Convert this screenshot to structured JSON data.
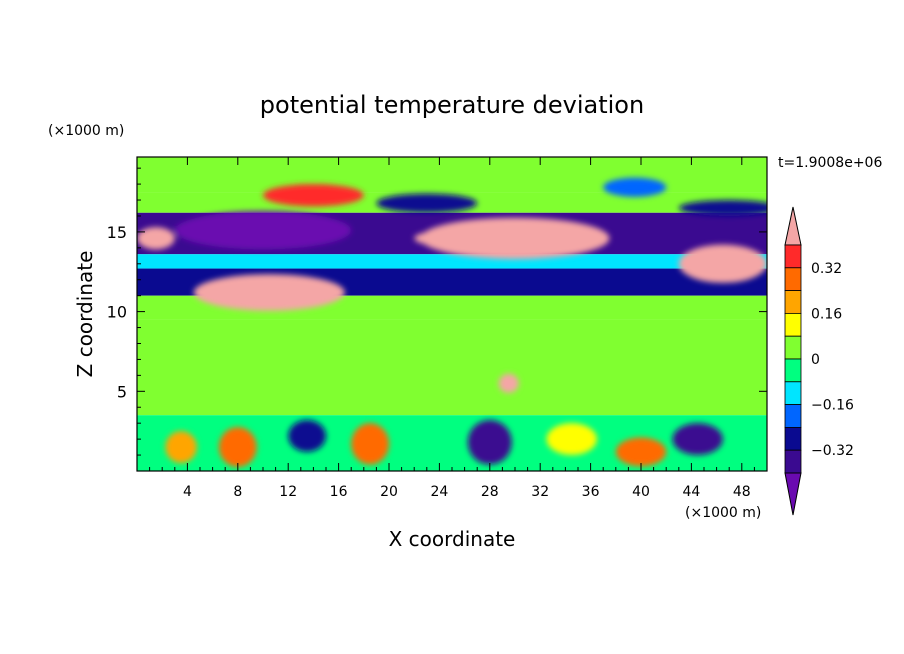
{
  "chart_data": {
    "type": "heatmap",
    "title": "potential temperature deviation",
    "xlabel": "X coordinate",
    "ylabel": "Z coordinate",
    "x_unit": "(×1000 m)",
    "y_unit": "(×1000 m)",
    "time_label": "t=1.9008e+06",
    "xlim": [
      0,
      50
    ],
    "ylim": [
      0,
      19.7
    ],
    "x_ticks": [
      4,
      8,
      12,
      16,
      20,
      24,
      28,
      32,
      36,
      40,
      44,
      48
    ],
    "y_ticks": [
      5,
      10,
      15
    ],
    "colorbar": {
      "levels": [
        -0.4,
        -0.32,
        -0.24,
        -0.16,
        -0.08,
        0,
        0.08,
        0.16,
        0.24,
        0.32,
        0.4
      ],
      "tick_labels": [
        "0.32",
        "0.16",
        "0",
        "−0.16",
        "−0.32"
      ],
      "tick_values": [
        0.32,
        0.16,
        0,
        -0.16,
        -0.32
      ],
      "colors_top_to_bottom": [
        "#f4a6a6",
        "#ff2a2a",
        "#ff6a00",
        "#ffa500",
        "#ffff00",
        "#80ff30",
        "#00ff80",
        "#00e5ff",
        "#0066ff",
        "#0a0a90",
        "#3a0a90",
        "#6a0ab0"
      ],
      "extend": "both"
    },
    "bands": [
      {
        "z": [
          17.5,
          19.7
        ],
        "value": 0.06
      },
      {
        "z": [
          16.2,
          17.5
        ],
        "value": 0.02
      },
      {
        "z": [
          13.6,
          16.2
        ],
        "value": -0.35
      },
      {
        "z": [
          12.7,
          13.6
        ],
        "value": -0.12
      },
      {
        "z": [
          11.0,
          12.7
        ],
        "value": -0.28
      },
      {
        "z": [
          9.5,
          11.0
        ],
        "value": 0.02
      },
      {
        "z": [
          3.5,
          9.5
        ],
        "value": 0.05
      },
      {
        "z": [
          0,
          3.5
        ],
        "value": -0.05
      }
    ],
    "patches": [
      {
        "x": 30,
        "z": 14.6,
        "w": 15,
        "h": 2.6,
        "value": 0.45
      },
      {
        "x": 46.5,
        "z": 13.0,
        "w": 7,
        "h": 2.4,
        "value": 0.45
      },
      {
        "x": 10.5,
        "z": 11.2,
        "w": 12,
        "h": 2.3,
        "value": 0.45
      },
      {
        "x": 26,
        "z": 14.6,
        "w": 8,
        "h": 1.2,
        "value": 0.4
      },
      {
        "x": 1.5,
        "z": 14.6,
        "w": 3,
        "h": 1.4,
        "value": 0.45
      },
      {
        "x": 14,
        "z": 17.3,
        "w": 8,
        "h": 1.4,
        "value": 0.35
      },
      {
        "x": 10,
        "z": 15.1,
        "w": 14,
        "h": 2.4,
        "value": -0.42
      },
      {
        "x": 47,
        "z": 16.5,
        "w": 8,
        "h": 1.0,
        "value": -0.3
      },
      {
        "x": 23,
        "z": 16.8,
        "w": 8,
        "h": 1.2,
        "value": -0.3
      },
      {
        "x": 39.5,
        "z": 17.8,
        "w": 5,
        "h": 1.2,
        "value": -0.2
      },
      {
        "x": 29.5,
        "z": 5.5,
        "w": 1.6,
        "h": 1.2,
        "value": 0.45
      },
      {
        "x": 8,
        "z": 1.5,
        "w": 3,
        "h": 2.5,
        "value": 0.3
      },
      {
        "x": 18.5,
        "z": 1.7,
        "w": 3,
        "h": 2.6,
        "value": 0.25
      },
      {
        "x": 28,
        "z": 1.8,
        "w": 3.5,
        "h": 2.8,
        "value": -0.4
      },
      {
        "x": 40,
        "z": 1.2,
        "w": 4,
        "h": 1.8,
        "value": 0.3
      },
      {
        "x": 44.5,
        "z": 2.0,
        "w": 4,
        "h": 2.0,
        "value": -0.35
      },
      {
        "x": 13.5,
        "z": 2.2,
        "w": 3,
        "h": 2.0,
        "value": -0.3
      },
      {
        "x": 3.5,
        "z": 1.5,
        "w": 2.5,
        "h": 2.0,
        "value": 0.2
      },
      {
        "x": 34.5,
        "z": 2.0,
        "w": 4,
        "h": 2.0,
        "value": 0.1
      }
    ]
  }
}
